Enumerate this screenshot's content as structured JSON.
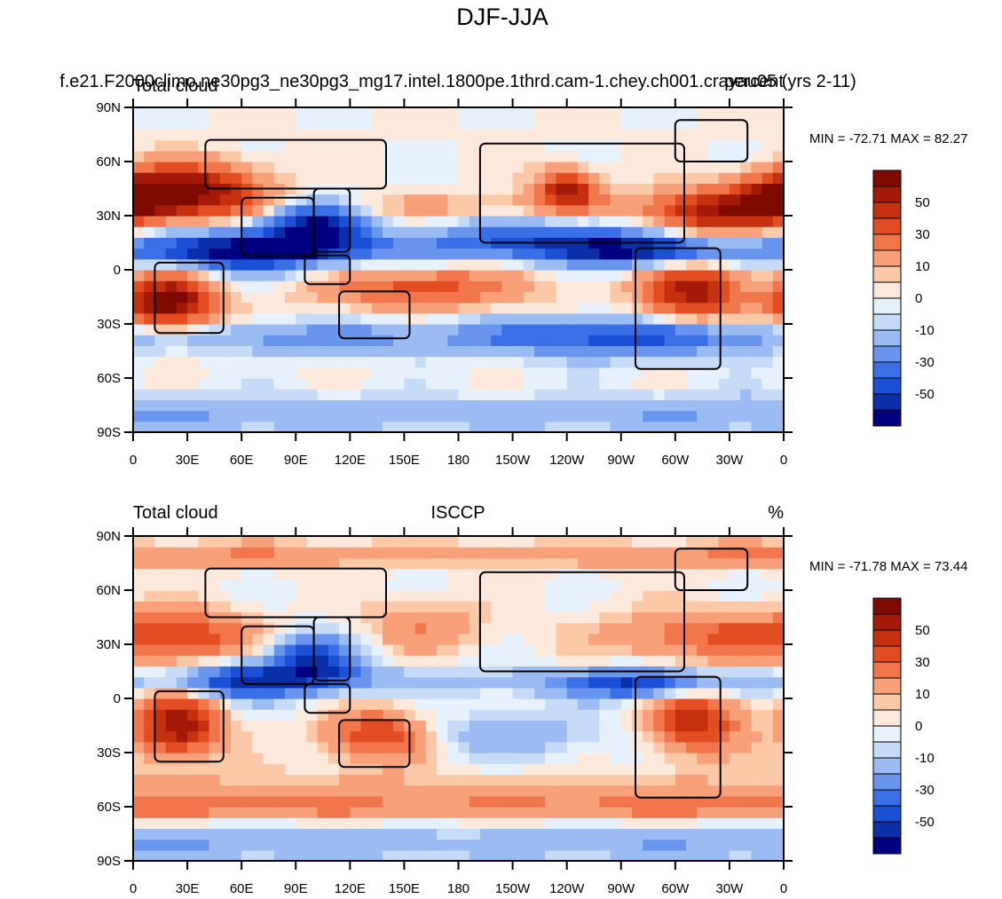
{
  "figure_title": "DJF-JJA",
  "panels": [
    {
      "id": "model",
      "left_label": "Total cloud",
      "center_label": "f.e21.F2000climo.ne30pg3_ne30pg3_mg17.intel.1800pe.1thrd.cam-1.chey.ch001.crayau05 (yrs 2-11)",
      "right_label": "percent",
      "stats": "MIN = -72.71 MAX =  82.27"
    },
    {
      "id": "obs",
      "left_label": "Total cloud",
      "center_label": "ISCCP",
      "right_label": "%",
      "stats": "MIN = -71.78 MAX =  73.44"
    }
  ],
  "colorbar": {
    "colors": [
      "#000080",
      "#0a2fa8",
      "#1a4fd6",
      "#3a6fe6",
      "#6a95ee",
      "#9bbbf3",
      "#c6dbf8",
      "#e6f1fc",
      "#fde9dc",
      "#fbc9a8",
      "#f8a07a",
      "#f2764c",
      "#e34d22",
      "#c5300f",
      "#a31a08",
      "#7e0a02"
    ],
    "labels": [
      "-50",
      "-30",
      "-10",
      "0",
      "10",
      "30",
      "50"
    ]
  },
  "chart_data": [
    {
      "type": "heatmap",
      "title": "Total cloud",
      "subtitle": "f.e21.F2000climo.ne30pg3_ne30pg3_mg17.intel.1800pe.1thrd.cam-1.chey.ch001.crayau05 (yrs 2-11)",
      "units": "percent",
      "x_ticks": [
        "0",
        "30E",
        "60E",
        "90E",
        "120E",
        "150E",
        "180",
        "150W",
        "120W",
        "90W",
        "60W",
        "30W",
        "0"
      ],
      "y_ticks": [
        "90N",
        "60N",
        "30N",
        "0",
        "30S",
        "60S",
        "90S"
      ],
      "xlim": [
        0,
        360
      ],
      "ylim": [
        -90,
        90
      ],
      "min": -72.71,
      "max": 82.27,
      "contour_levels": [
        -70,
        -60,
        -50,
        -40,
        -30,
        -20,
        -10,
        -5,
        0,
        5,
        10,
        20,
        30,
        40,
        50,
        60,
        70
      ]
    },
    {
      "type": "heatmap",
      "title": "Total cloud",
      "subtitle": "ISCCP",
      "units": "%",
      "x_ticks": [
        "0",
        "30E",
        "60E",
        "90E",
        "120E",
        "150E",
        "180",
        "150W",
        "120W",
        "90W",
        "60W",
        "30W",
        "0"
      ],
      "y_ticks": [
        "90N",
        "60N",
        "30N",
        "0",
        "30S",
        "60S",
        "90S"
      ],
      "xlim": [
        0,
        360
      ],
      "ylim": [
        -90,
        90
      ],
      "min": -71.78,
      "max": 73.44,
      "contour_levels": [
        -70,
        -60,
        -50,
        -40,
        -30,
        -20,
        -10,
        -5,
        0,
        5,
        10,
        20,
        30,
        40,
        50,
        60,
        70
      ]
    }
  ]
}
